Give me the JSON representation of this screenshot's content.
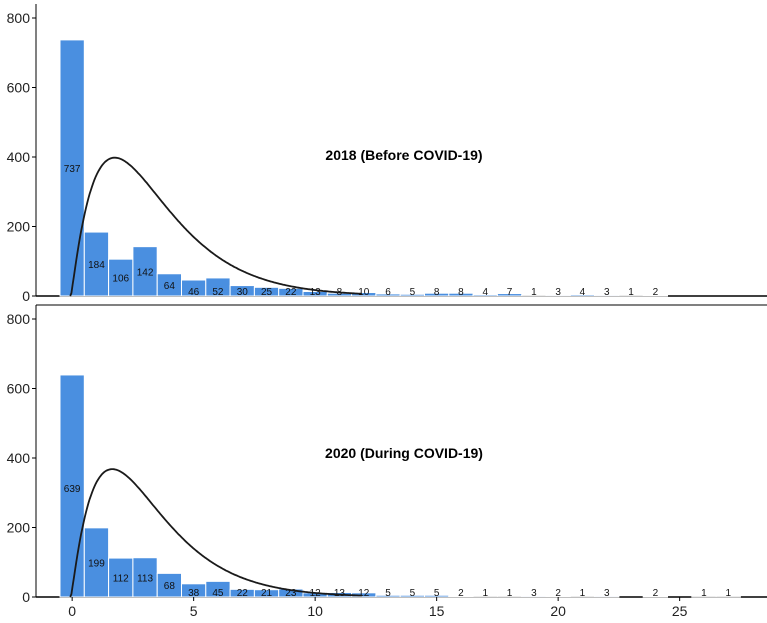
{
  "colors": {
    "bar": "#4a8fe0",
    "bar_edge": "#ffffff",
    "curve": "#1a1a1a",
    "axis": "#000000"
  },
  "chart_data": [
    {
      "type": "bar",
      "title": "2018 (Before COVID-19)",
      "ylim": [
        0,
        800
      ],
      "yticks": [
        0,
        200,
        400,
        600,
        800
      ],
      "xlim": [
        -0.5,
        28.5
      ],
      "xticks": [],
      "x": [
        0,
        1,
        2,
        3,
        4,
        5,
        6,
        7,
        8,
        9,
        10,
        11,
        12,
        13,
        14,
        15,
        16,
        17,
        18,
        19,
        20,
        21,
        22,
        23,
        24
      ],
      "values": [
        737,
        184,
        106,
        142,
        64,
        46,
        52,
        30,
        25,
        22,
        13,
        8,
        10,
        6,
        5,
        8,
        8,
        4,
        7,
        1,
        3,
        4,
        3,
        1,
        2
      ],
      "labels": [
        "737",
        "184",
        "106",
        "142",
        "64",
        "46",
        "52",
        "30",
        "25",
        "22",
        "13",
        "8",
        "10",
        "6",
        "5",
        "8",
        "8",
        "4",
        "7",
        "1",
        "3",
        "4",
        "3",
        "1",
        "2"
      ],
      "curve": {
        "type": "gamma-fit",
        "peak_x": 1.8,
        "peak_y": 398
      }
    },
    {
      "type": "bar",
      "title": "2020 (During COVID-19)",
      "ylim": [
        0,
        800
      ],
      "yticks": [
        0,
        200,
        400,
        600,
        800
      ],
      "xlim": [
        -0.5,
        28.5
      ],
      "xticks": [
        0,
        5,
        10,
        15,
        20,
        25
      ],
      "x": [
        0,
        1,
        2,
        3,
        4,
        5,
        6,
        7,
        8,
        9,
        10,
        11,
        12,
        13,
        14,
        15,
        16,
        17,
        18,
        19,
        20,
        21,
        22,
        23,
        24,
        25,
        26,
        27
      ],
      "values": [
        639,
        199,
        112,
        113,
        68,
        38,
        45,
        22,
        21,
        23,
        12,
        13,
        12,
        5,
        5,
        5,
        2,
        1,
        1,
        3,
        2,
        1,
        3,
        0,
        2,
        0,
        1,
        1
      ],
      "labels": [
        "639",
        "199",
        "112",
        "113",
        "68",
        "38",
        "45",
        "22",
        "21",
        "23",
        "12",
        "13",
        "12",
        "5",
        "5",
        "5",
        "2",
        "1",
        "1",
        "3",
        "2",
        "1",
        "3",
        "",
        "2",
        "",
        "1",
        "1"
      ],
      "curve": {
        "type": "gamma-fit",
        "peak_x": 1.7,
        "peak_y": 368
      }
    }
  ]
}
